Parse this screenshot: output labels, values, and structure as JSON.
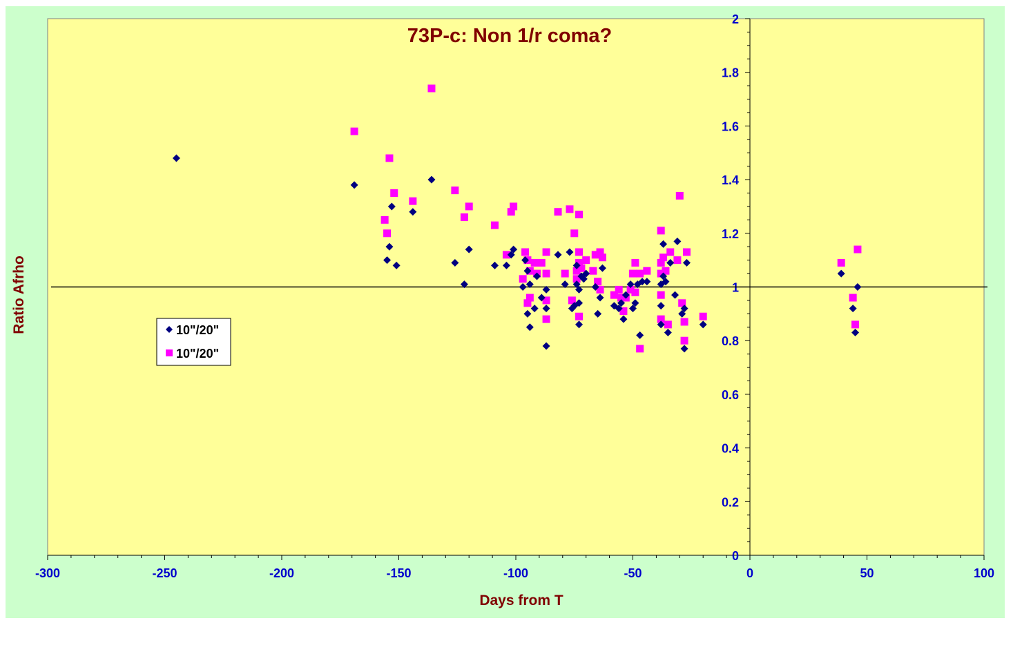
{
  "chart_data": {
    "type": "scatter",
    "title": "73P-c: Non 1/r coma?",
    "xlabel": "Days from T",
    "ylabel": "Ratio Afrho",
    "xlim": [
      -300,
      100
    ],
    "ylim": [
      0,
      2
    ],
    "x_ticks": [
      "-300",
      "-250",
      "-200",
      "-150",
      "-100",
      "-50",
      "0",
      "50",
      "100"
    ],
    "y_ticks": [
      "0",
      "0.2",
      "0.4",
      "0.6",
      "0.8",
      "1",
      "1.2",
      "1.4",
      "1.6",
      "1.8",
      "2"
    ],
    "reference_line_y": 1,
    "grid": false,
    "legend_position": "left",
    "plot_background": "#ffff99",
    "chart_background": "#ccffcc",
    "series": [
      {
        "name": "10\"/20\"",
        "marker": "diamond",
        "color": "#000080",
        "points": [
          [
            -245,
            1.48
          ],
          [
            -169,
            1.38
          ],
          [
            -155,
            1.1
          ],
          [
            -154,
            1.15
          ],
          [
            -153,
            1.3
          ],
          [
            -151,
            1.08
          ],
          [
            -144,
            1.28
          ],
          [
            -136,
            1.4
          ],
          [
            -126,
            1.09
          ],
          [
            -122,
            1.01
          ],
          [
            -120,
            1.14
          ],
          [
            -109,
            1.08
          ],
          [
            -104,
            1.08
          ],
          [
            -102,
            1.12
          ],
          [
            -101,
            1.14
          ],
          [
            -97,
            1.0
          ],
          [
            -96,
            1.1
          ],
          [
            -95,
            1.06
          ],
          [
            -95,
            0.9
          ],
          [
            -94,
            1.01
          ],
          [
            -94,
            0.85
          ],
          [
            -92,
            0.92
          ],
          [
            -91,
            1.04
          ],
          [
            -89,
            0.96
          ],
          [
            -87,
            0.99
          ],
          [
            -87,
            0.92
          ],
          [
            -87,
            0.78
          ],
          [
            -82,
            1.12
          ],
          [
            -79,
            1.01
          ],
          [
            -77,
            1.13
          ],
          [
            -76,
            0.92
          ],
          [
            -75,
            0.93
          ],
          [
            -74,
            1.01
          ],
          [
            -74,
            1.08
          ],
          [
            -73,
            0.94
          ],
          [
            -73,
            0.99
          ],
          [
            -73,
            0.86
          ],
          [
            -72,
            1.04
          ],
          [
            -71,
            1.03
          ],
          [
            -70,
            1.05
          ],
          [
            -66,
            1.0
          ],
          [
            -65,
            0.9
          ],
          [
            -64,
            0.96
          ],
          [
            -63,
            1.07
          ],
          [
            -58,
            0.93
          ],
          [
            -56,
            0.92
          ],
          [
            -55,
            0.94
          ],
          [
            -54,
            0.88
          ],
          [
            -53,
            0.97
          ],
          [
            -51,
            1.01
          ],
          [
            -50,
            0.92
          ],
          [
            -49,
            0.94
          ],
          [
            -48,
            1.01
          ],
          [
            -47,
            0.82
          ],
          [
            -46,
            1.02
          ],
          [
            -44,
            1.02
          ],
          [
            -38,
            1.01
          ],
          [
            -38,
            0.93
          ],
          [
            -38,
            0.86
          ],
          [
            -37,
            1.16
          ],
          [
            -37,
            1.04
          ],
          [
            -36,
            1.02
          ],
          [
            -35,
            0.83
          ],
          [
            -34,
            1.09
          ],
          [
            -32,
            0.97
          ],
          [
            -31,
            1.17
          ],
          [
            -29,
            0.9
          ],
          [
            -28,
            0.92
          ],
          [
            -28,
            0.77
          ],
          [
            -27,
            1.09
          ],
          [
            -20,
            0.86
          ],
          [
            39,
            1.05
          ],
          [
            44,
            0.92
          ],
          [
            45,
            0.83
          ],
          [
            46,
            1.0
          ]
        ]
      },
      {
        "name": "10\"/20\"",
        "marker": "square",
        "color": "#ff00ff",
        "points": [
          [
            -169,
            1.58
          ],
          [
            -156,
            1.25
          ],
          [
            -155,
            1.2
          ],
          [
            -154,
            1.48
          ],
          [
            -152,
            1.35
          ],
          [
            -144,
            1.32
          ],
          [
            -136,
            1.74
          ],
          [
            -126,
            1.36
          ],
          [
            -122,
            1.26
          ],
          [
            -120,
            1.3
          ],
          [
            -109,
            1.23
          ],
          [
            -104,
            1.12
          ],
          [
            -102,
            1.28
          ],
          [
            -101,
            1.3
          ],
          [
            -97,
            1.03
          ],
          [
            -96,
            1.13
          ],
          [
            -95,
            1.1
          ],
          [
            -95,
            0.94
          ],
          [
            -94,
            1.06
          ],
          [
            -94,
            0.96
          ],
          [
            -92,
            1.09
          ],
          [
            -91,
            1.05
          ],
          [
            -89,
            1.09
          ],
          [
            -87,
            1.13
          ],
          [
            -87,
            1.05
          ],
          [
            -87,
            0.95
          ],
          [
            -87,
            0.88
          ],
          [
            -82,
            1.28
          ],
          [
            -79,
            1.05
          ],
          [
            -77,
            1.29
          ],
          [
            -76,
            0.95
          ],
          [
            -75,
            1.2
          ],
          [
            -74,
            1.06
          ],
          [
            -74,
            1.03
          ],
          [
            -73,
            1.27
          ],
          [
            -73,
            1.13
          ],
          [
            -73,
            1.09
          ],
          [
            -73,
            0.89
          ],
          [
            -72,
            1.07
          ],
          [
            -70,
            1.1
          ],
          [
            -67,
            1.06
          ],
          [
            -66,
            1.12
          ],
          [
            -65,
            1.02
          ],
          [
            -64,
            1.13
          ],
          [
            -64,
            0.99
          ],
          [
            -63,
            1.11
          ],
          [
            -58,
            0.97
          ],
          [
            -56,
            0.99
          ],
          [
            -55,
            0.96
          ],
          [
            -54,
            0.91
          ],
          [
            -53,
            0.96
          ],
          [
            -51,
            0.99
          ],
          [
            -50,
            1.05
          ],
          [
            -49,
            1.09
          ],
          [
            -49,
            0.98
          ],
          [
            -47,
            1.05
          ],
          [
            -47,
            0.77
          ],
          [
            -44,
            1.06
          ],
          [
            -38,
            1.21
          ],
          [
            -38,
            1.05
          ],
          [
            -38,
            1.09
          ],
          [
            -38,
            0.97
          ],
          [
            -38,
            0.88
          ],
          [
            -37,
            1.11
          ],
          [
            -36,
            1.06
          ],
          [
            -35,
            0.86
          ],
          [
            -34,
            1.13
          ],
          [
            -31,
            1.1
          ],
          [
            -30,
            1.34
          ],
          [
            -29,
            0.94
          ],
          [
            -28,
            0.87
          ],
          [
            -28,
            0.8
          ],
          [
            -27,
            1.13
          ],
          [
            -20,
            0.89
          ],
          [
            39,
            1.09
          ],
          [
            44,
            0.96
          ],
          [
            45,
            0.86
          ],
          [
            46,
            1.14
          ]
        ]
      }
    ]
  }
}
